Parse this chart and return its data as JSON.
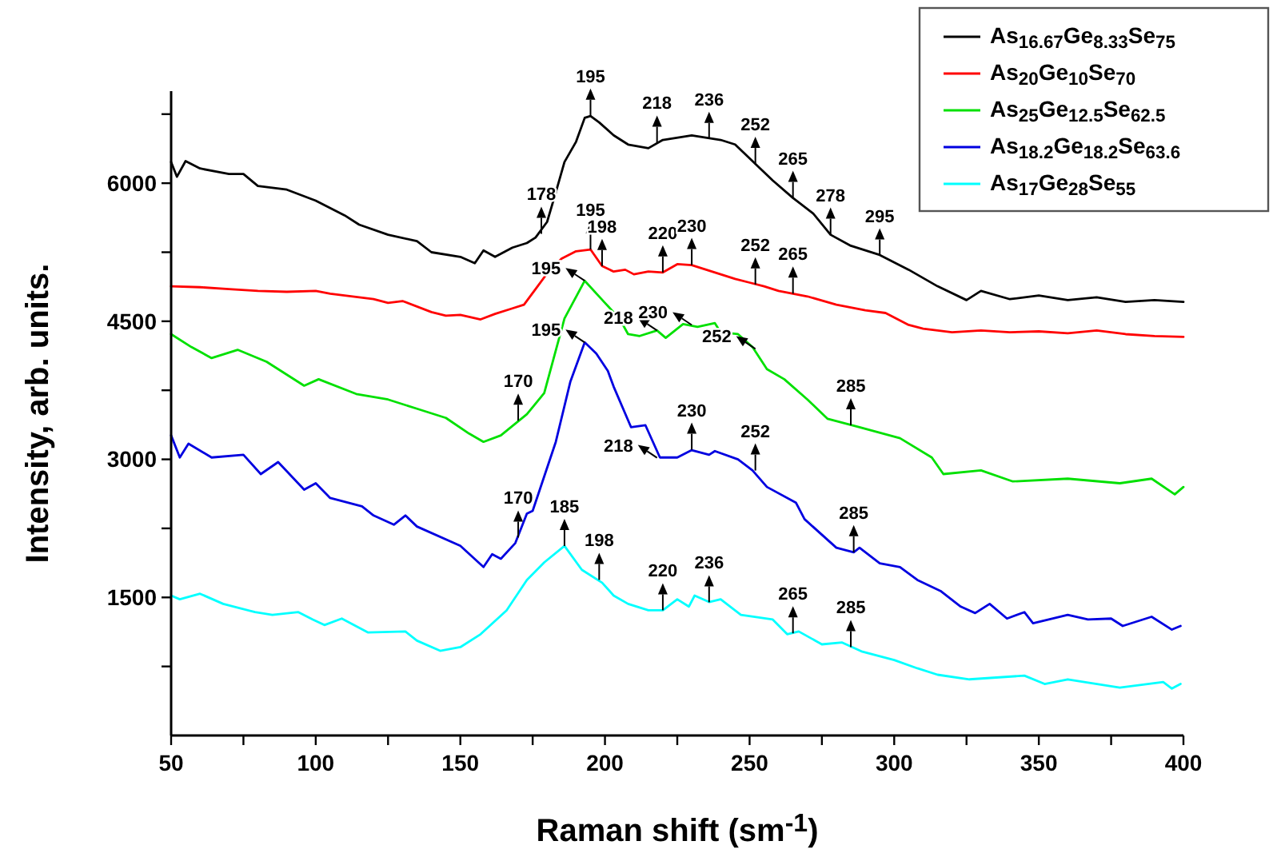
{
  "chart_data": {
    "type": "line",
    "xlabel": "Raman shift  (sm$^{-1}$)",
    "ylabel": "Intensity, arb. units.",
    "xlim": [
      50,
      400
    ],
    "ylim": [
      0,
      7000
    ],
    "xticks": [
      50,
      {
        "value": 75,
        "label": null
      },
      100,
      {
        "value": 125,
        "label": null
      },
      150,
      {
        "value": 175,
        "label": null
      },
      200,
      {
        "value": 225,
        "label": null
      },
      250,
      {
        "value": 275,
        "label": null
      },
      300,
      {
        "value": 325,
        "label": null
      },
      350,
      {
        "value": 375,
        "label": null
      },
      400
    ],
    "yticks": [
      {
        "value": 750,
        "label": null
      },
      1500,
      {
        "value": 2250,
        "label": null
      },
      3000,
      {
        "value": 3750,
        "label": null
      },
      4500,
      {
        "value": 5250,
        "label": null
      },
      6000,
      {
        "value": 6750,
        "label": null
      }
    ],
    "grid": false,
    "legend": "top right",
    "marker": "none",
    "line_style": "solid",
    "series": [
      {
        "name": "As$_{16.67}$Ge$_{8.33}$Se$_{75}$",
        "color": "#000000",
        "x": [
          50,
          52,
          55,
          60,
          70,
          75,
          80,
          90,
          100,
          110,
          115,
          125,
          135,
          140,
          150,
          155,
          158,
          162,
          168,
          173,
          176,
          180,
          183,
          186,
          190,
          193,
          195,
          198,
          203,
          208,
          215,
          220,
          230,
          240,
          245,
          252,
          258,
          265,
          272,
          278,
          285,
          295,
          305,
          315,
          325,
          330,
          340,
          350,
          360,
          370,
          380,
          390,
          400
        ],
        "values": [
          6230,
          6070,
          6240,
          6160,
          6100,
          6100,
          5970,
          5930,
          5810,
          5650,
          5550,
          5440,
          5370,
          5250,
          5200,
          5130,
          5270,
          5200,
          5300,
          5350,
          5410,
          5580,
          5900,
          6230,
          6450,
          6710,
          6730,
          6660,
          6520,
          6420,
          6380,
          6470,
          6520,
          6470,
          6420,
          6210,
          6030,
          5840,
          5670,
          5440,
          5320,
          5220,
          5060,
          4880,
          4730,
          4830,
          4740,
          4780,
          4730,
          4760,
          4710,
          4730,
          4710
        ]
      },
      {
        "name": "As$_{20}$Ge$_{10}$Se$_{70}$",
        "color": "#ff0000",
        "x": [
          50,
          60,
          70,
          80,
          90,
          100,
          105,
          110,
          120,
          125,
          130,
          140,
          145,
          150,
          157,
          162,
          168,
          172,
          176,
          180,
          185,
          190,
          195,
          199,
          203,
          207,
          210,
          215,
          220,
          225,
          230,
          235,
          240,
          245,
          250,
          255,
          260,
          265,
          270,
          280,
          290,
          297,
          305,
          310,
          320,
          330,
          340,
          350,
          360,
          370,
          380,
          390,
          400
        ],
        "values": [
          4880,
          4870,
          4850,
          4830,
          4820,
          4830,
          4800,
          4780,
          4740,
          4700,
          4720,
          4600,
          4560,
          4570,
          4520,
          4580,
          4640,
          4680,
          4850,
          5020,
          5180,
          5260,
          5280,
          5100,
          5040,
          5060,
          5010,
          5040,
          5030,
          5120,
          5110,
          5060,
          5010,
          4960,
          4920,
          4880,
          4830,
          4800,
          4770,
          4680,
          4620,
          4590,
          4460,
          4420,
          4380,
          4400,
          4380,
          4390,
          4370,
          4400,
          4360,
          4340,
          4330
        ]
      },
      {
        "name": "As$_{25}$Ge$_{12.5}$Se$_{62.5}$",
        "color": "#00e000",
        "x": [
          50,
          57,
          64,
          73,
          83,
          96,
          101,
          114,
          125,
          135,
          145,
          153,
          158,
          164,
          173,
          179,
          186,
          193,
          200,
          205,
          208,
          212,
          218,
          221,
          227,
          232,
          238,
          240,
          246,
          251,
          256,
          262,
          270,
          277,
          288,
          302,
          313,
          317,
          330,
          341,
          360,
          378,
          389,
          397,
          400
        ],
        "values": [
          4360,
          4220,
          4100,
          4190,
          4060,
          3800,
          3870,
          3710,
          3650,
          3550,
          3450,
          3280,
          3190,
          3260,
          3490,
          3720,
          4530,
          4940,
          4700,
          4530,
          4360,
          4340,
          4400,
          4320,
          4470,
          4440,
          4480,
          4380,
          4360,
          4220,
          3980,
          3870,
          3650,
          3440,
          3350,
          3230,
          3020,
          2840,
          2880,
          2760,
          2790,
          2740,
          2790,
          2620,
          2700
        ]
      },
      {
        "name": "As$_{18.2}$Ge$_{18.2}$Se$_{63.6}$",
        "color": "#0000e0",
        "x": [
          50,
          53,
          56,
          64,
          75,
          81,
          87,
          96,
          100,
          105,
          116,
          120,
          127,
          131,
          135,
          150,
          158,
          161,
          164,
          169,
          173,
          175,
          183,
          188,
          193,
          197,
          201,
          203,
          209,
          214,
          219,
          225,
          230,
          236,
          238,
          246,
          251,
          256,
          266,
          269,
          280,
          286,
          288,
          295,
          302,
          308,
          316,
          323,
          328,
          333,
          339,
          345,
          348,
          360,
          367,
          375,
          379,
          389,
          396,
          399
        ],
        "values": [
          3260,
          3020,
          3170,
          3020,
          3050,
          2840,
          2970,
          2670,
          2740,
          2580,
          2490,
          2390,
          2290,
          2390,
          2270,
          2060,
          1830,
          1970,
          1920,
          2090,
          2410,
          2440,
          3190,
          3840,
          4270,
          4150,
          3960,
          3790,
          3350,
          3370,
          3020,
          3020,
          3100,
          3050,
          3090,
          3000,
          2880,
          2700,
          2530,
          2350,
          2040,
          1990,
          2040,
          1870,
          1830,
          1690,
          1570,
          1400,
          1330,
          1430,
          1270,
          1340,
          1220,
          1310,
          1260,
          1270,
          1190,
          1290,
          1150,
          1190
        ]
      },
      {
        "name": "As$_{17}$Ge$_{28}$Se$_{55}$",
        "color": "#00ffff",
        "x": [
          50,
          53,
          60,
          68,
          79,
          85,
          94,
          99,
          103,
          109,
          118,
          131,
          135,
          143,
          150,
          157,
          166,
          173,
          179,
          186,
          192,
          199,
          203,
          208,
          215,
          220,
          225,
          229,
          231,
          236,
          240,
          247,
          258,
          263,
          267,
          275,
          282,
          289,
          300,
          308,
          315,
          326,
          345,
          352,
          360,
          378,
          393,
          396,
          399
        ],
        "values": [
          1520,
          1480,
          1540,
          1430,
          1340,
          1310,
          1340,
          1260,
          1200,
          1270,
          1120,
          1130,
          1030,
          920,
          960,
          1100,
          1360,
          1690,
          1880,
          2060,
          1800,
          1660,
          1520,
          1430,
          1360,
          1360,
          1480,
          1400,
          1520,
          1450,
          1480,
          1310,
          1260,
          1100,
          1130,
          990,
          1010,
          910,
          820,
          730,
          660,
          610,
          650,
          560,
          610,
          520,
          580,
          510,
          560
        ]
      }
    ],
    "annotations": [
      {
        "text": "178",
        "x": 178,
        "y": 5450
      },
      {
        "text": "195",
        "x": 195,
        "y": 6732
      },
      {
        "text": "218",
        "x": 218,
        "y": 6440
      },
      {
        "text": "236",
        "x": 236,
        "y": 6480
      },
      {
        "text": "252",
        "x": 252,
        "y": 6209
      },
      {
        "text": "265",
        "x": 265,
        "y": 5840
      },
      {
        "text": "278",
        "x": 278,
        "y": 5441
      },
      {
        "text": "295",
        "x": 295,
        "y": 5215
      },
      {
        "text": "195",
        "x": 195,
        "y": 5280
      },
      {
        "text": "198",
        "x": 199,
        "y": 5100
      },
      {
        "text": "220",
        "x": 220,
        "y": 5030
      },
      {
        "text": "230",
        "x": 230,
        "y": 5110
      },
      {
        "text": "252",
        "x": 252,
        "y": 4900
      },
      {
        "text": "265",
        "x": 265,
        "y": 4800
      },
      {
        "text": "195",
        "x": 193,
        "y": 4940
      },
      {
        "text": "170",
        "x": 170,
        "y": 3420
      },
      {
        "text": "218",
        "x": 218,
        "y": 4400
      },
      {
        "text": "230",
        "x": 230,
        "y": 4460
      },
      {
        "text": "252",
        "x": 252,
        "y": 4200
      },
      {
        "text": "285",
        "x": 285,
        "y": 3370
      },
      {
        "text": "195",
        "x": 193,
        "y": 4270
      },
      {
        "text": "170",
        "x": 170,
        "y": 2150
      },
      {
        "text": "218",
        "x": 218,
        "y": 3017
      },
      {
        "text": "230",
        "x": 230,
        "y": 3104
      },
      {
        "text": "252",
        "x": 252,
        "y": 2878
      },
      {
        "text": "285",
        "x": 286,
        "y": 1990
      },
      {
        "text": "185",
        "x": 186,
        "y": 2058
      },
      {
        "text": "198",
        "x": 198,
        "y": 1690
      },
      {
        "text": "220",
        "x": 220,
        "y": 1360
      },
      {
        "text": "236",
        "x": 236,
        "y": 1447
      },
      {
        "text": "265",
        "x": 265,
        "y": 1110
      },
      {
        "text": "285",
        "x": 285,
        "y": 960
      }
    ]
  }
}
